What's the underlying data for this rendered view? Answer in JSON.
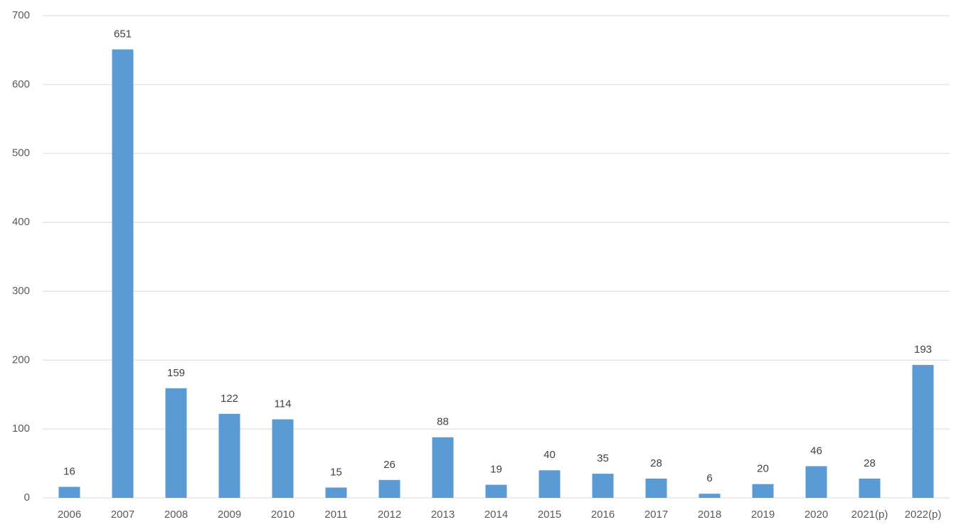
{
  "chart_data": {
    "type": "bar",
    "categories": [
      "2006",
      "2007",
      "2008",
      "2009",
      "2010",
      "2011",
      "2012",
      "2013",
      "2014",
      "2015",
      "2016",
      "2017",
      "2018",
      "2019",
      "2020",
      "2021(p)",
      "2022(p)"
    ],
    "values": [
      16,
      651,
      159,
      122,
      114,
      15,
      26,
      88,
      19,
      40,
      35,
      28,
      6,
      20,
      46,
      28,
      193
    ],
    "color": "#5b9bd5",
    "ylim": [
      0,
      700
    ],
    "yticks": [
      0,
      100,
      200,
      300,
      400,
      500,
      600,
      700
    ],
    "grid": true,
    "data_labels": true
  }
}
